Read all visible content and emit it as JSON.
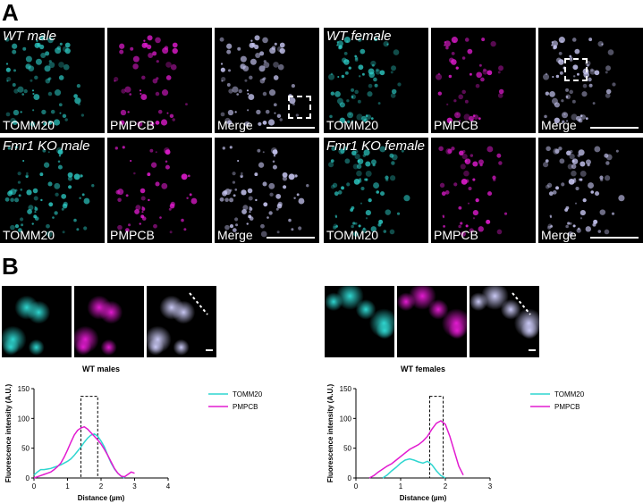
{
  "panels": {
    "a": "A",
    "b": "B"
  },
  "channel_labels": [
    "TOMM20",
    "PMPCB",
    "Merge"
  ],
  "conditions": [
    {
      "id": "wt-male",
      "label": "WT male"
    },
    {
      "id": "wt-female",
      "label": "WT female"
    },
    {
      "id": "fmr1-ko-male",
      "label": "Fmr1 KO male"
    },
    {
      "id": "fmr1-ko-female",
      "label": "Fmr1 KO female"
    }
  ],
  "colors": {
    "tomm20": "#2fd6d0",
    "pmpcb": "#e21bd0",
    "merge": "#c9c8f4"
  },
  "chart_data": [
    {
      "type": "line",
      "title": "WT males",
      "xlabel": "Distance (µm)",
      "ylabel": "Fluorescence intensity (A.U.)",
      "xlim": [
        0,
        4
      ],
      "ylim": [
        0,
        150
      ],
      "xticks": [
        0,
        1,
        2,
        3,
        4
      ],
      "yticks": [
        0,
        50,
        100,
        150
      ],
      "legend_position": "right",
      "highlight_box": {
        "x0": 1.4,
        "x1": 1.9,
        "y0": 0,
        "y1": 137
      },
      "series": [
        {
          "name": "TOMM20",
          "color": "#2fd6d0",
          "x": [
            0,
            0.1,
            0.2,
            0.3,
            0.4,
            0.5,
            0.6,
            0.7,
            0.8,
            0.9,
            1.0,
            1.1,
            1.2,
            1.3,
            1.4,
            1.5,
            1.6,
            1.7,
            1.8,
            1.9,
            2.0,
            2.1,
            2.2,
            2.3,
            2.4,
            2.5,
            2.6,
            2.7
          ],
          "y": [
            5,
            10,
            14,
            14,
            15,
            16,
            18,
            20,
            22,
            25,
            28,
            32,
            38,
            45,
            52,
            60,
            67,
            72,
            74,
            70,
            62,
            52,
            38,
            25,
            15,
            8,
            3,
            0
          ]
        },
        {
          "name": "PMPCB",
          "color": "#e21bd0",
          "x": [
            0,
            0.1,
            0.2,
            0.3,
            0.4,
            0.5,
            0.6,
            0.7,
            0.8,
            0.9,
            1.0,
            1.1,
            1.2,
            1.3,
            1.4,
            1.5,
            1.6,
            1.7,
            1.8,
            1.9,
            2.0,
            2.1,
            2.2,
            2.3,
            2.4,
            2.5,
            2.6,
            2.7,
            2.8,
            2.9,
            3.0
          ],
          "y": [
            0,
            2,
            4,
            6,
            8,
            10,
            14,
            19,
            25,
            35,
            47,
            60,
            72,
            80,
            84,
            86,
            82,
            76,
            70,
            64,
            57,
            48,
            38,
            27,
            16,
            8,
            3,
            2,
            6,
            10,
            8
          ]
        }
      ]
    },
    {
      "type": "line",
      "title": "WT females",
      "xlabel": "Distance (µm)",
      "ylabel": "Fluorescence intensity (A.U.)",
      "xlim": [
        0,
        3
      ],
      "ylim": [
        0,
        150
      ],
      "xticks": [
        0,
        1,
        2,
        3
      ],
      "yticks": [
        0,
        50,
        100,
        150
      ],
      "legend_position": "right",
      "highlight_box": {
        "x0": 1.65,
        "x1": 1.95,
        "y0": 0,
        "y1": 137
      },
      "series": [
        {
          "name": "TOMM20",
          "color": "#2fd6d0",
          "x": [
            0.6,
            0.7,
            0.8,
            0.9,
            1.0,
            1.1,
            1.2,
            1.3,
            1.4,
            1.5,
            1.6,
            1.7,
            1.8,
            1.9,
            2.0
          ],
          "y": [
            0,
            5,
            12,
            18,
            25,
            30,
            32,
            30,
            27,
            25,
            28,
            22,
            12,
            4,
            0
          ]
        },
        {
          "name": "PMPCB",
          "color": "#e21bd0",
          "x": [
            0.3,
            0.4,
            0.5,
            0.6,
            0.7,
            0.8,
            0.9,
            1.0,
            1.1,
            1.2,
            1.3,
            1.4,
            1.5,
            1.6,
            1.7,
            1.8,
            1.9,
            2.0,
            2.1,
            2.2,
            2.3,
            2.4
          ],
          "y": [
            0,
            4,
            10,
            15,
            20,
            24,
            30,
            36,
            42,
            48,
            52,
            56,
            62,
            70,
            82,
            92,
            96,
            90,
            70,
            45,
            20,
            5
          ]
        }
      ]
    }
  ]
}
